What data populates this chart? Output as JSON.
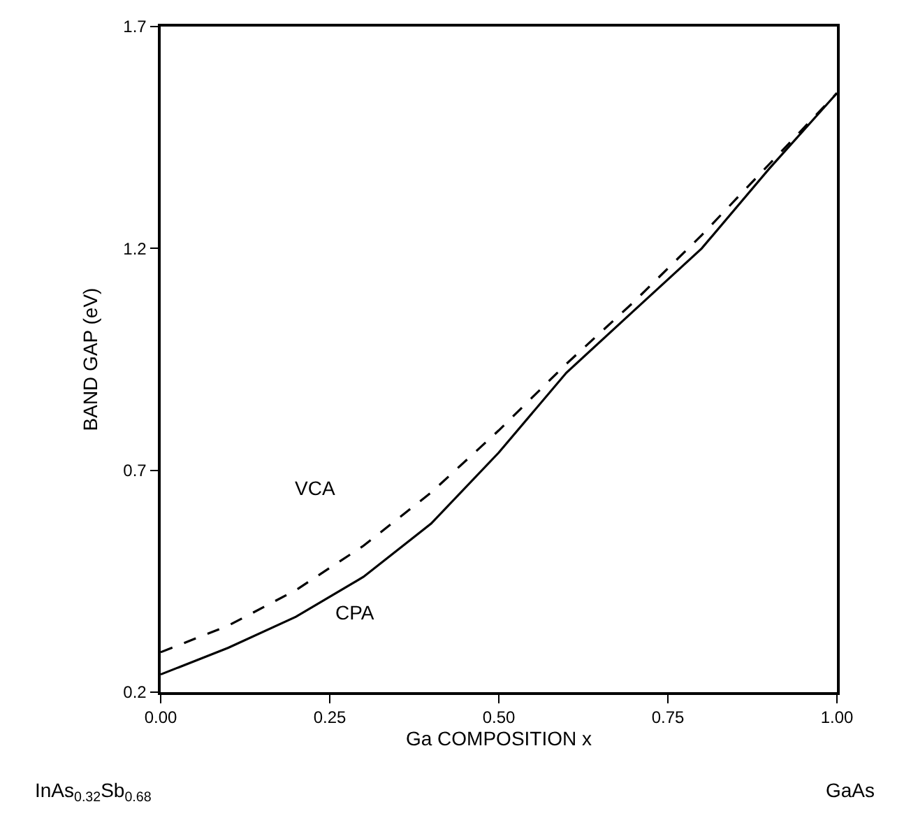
{
  "chart_data": {
    "type": "line",
    "xlabel": "Ga COMPOSITION x",
    "ylabel": "BAND GAP (eV)",
    "x": [
      0,
      0.1,
      0.2,
      0.3,
      0.4,
      0.5,
      0.6,
      0.7,
      0.8,
      0.9,
      1.0
    ],
    "series": [
      {
        "color": "#000000",
        "line_style": "dashed",
        "values": [
          0.29,
          0.35,
          0.43,
          0.53,
          0.65,
          0.79,
          0.94,
          1.08,
          1.23,
          1.39,
          1.55
        ]
      },
      {
        "color": "#000000",
        "line_style": "solid",
        "values": [
          0.24,
          0.3,
          0.37,
          0.46,
          0.58,
          0.74,
          0.92,
          1.06,
          1.2,
          1.38,
          1.55
        ]
      }
    ],
    "annotations": [
      "VCA",
      "CPA",
      "InAs$_{0.32}$Sb$_{0.68}$",
      "GaAs"
    ],
    "xlim": [
      0,
      1
    ],
    "ylim": [
      0.2,
      1.7
    ],
    "xticks": [
      {
        "value": 0,
        "label": "0.00"
      },
      {
        "value": 0.25,
        "label": "0.25"
      },
      {
        "value": 0.5,
        "label": "0.50"
      },
      {
        "value": 0.75,
        "label": "0.75"
      },
      {
        "value": 1,
        "label": "1.00"
      }
    ],
    "yticks": [
      0.2,
      0.7,
      1.2,
      1.7
    ],
    "legend": false,
    "marker": "none"
  }
}
